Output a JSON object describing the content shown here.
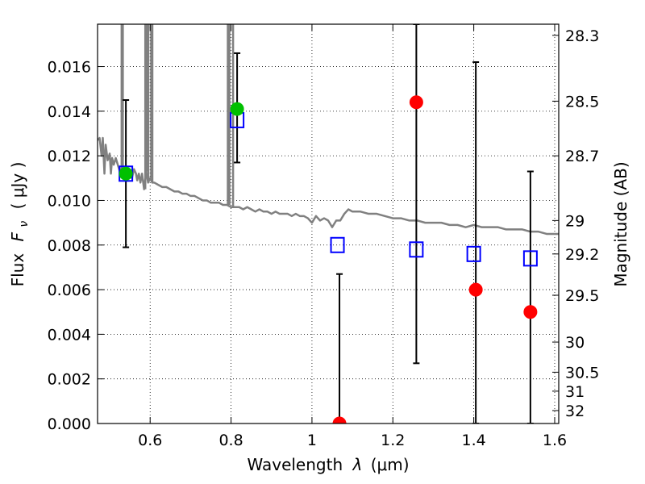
{
  "chart_data": {
    "type": "scatter",
    "xlabel_text": "Wavelength",
    "xlabel_symbol": "λ",
    "xlabel_unit": "(μm)",
    "ylabel_left_text": "Flux",
    "ylabel_left_symbol": "F",
    "ylabel_left_subscript": "ν",
    "ylabel_left_unit": "( μJy )",
    "ylabel_right": "Magnitude (AB)",
    "xlim": [
      0.47,
      1.61
    ],
    "ylim": [
      0.0,
      0.0179
    ],
    "grid": true,
    "x_ticks": [
      0.6,
      0.8,
      1.0,
      1.2,
      1.4,
      1.6
    ],
    "x_tick_labels": [
      "0.6",
      "0.8",
      "1",
      "1.2",
      "1.4",
      "1.6"
    ],
    "y_ticks": [
      0.0,
      0.002,
      0.004,
      0.006,
      0.008,
      0.01,
      0.012,
      0.014,
      0.016
    ],
    "y_tick_labels": [
      "0.000",
      "0.002",
      "0.004",
      "0.006",
      "0.008",
      "0.010",
      "0.012",
      "0.014",
      "0.016"
    ],
    "right_ticks": [
      {
        "flux": 0.0174,
        "label": "28.3"
      },
      {
        "flux": 0.01445,
        "label": "28.5"
      },
      {
        "flux": 0.012,
        "label": "28.7"
      },
      {
        "flux": 0.0091,
        "label": "29"
      },
      {
        "flux": 0.0076,
        "label": "29.2"
      },
      {
        "flux": 0.00575,
        "label": "29.5"
      },
      {
        "flux": 0.00365,
        "label": "30"
      },
      {
        "flux": 0.0023,
        "label": "30.5"
      },
      {
        "flux": 0.00145,
        "label": "31"
      },
      {
        "flux": 0.00058,
        "label": "32"
      }
    ],
    "model_spectrum": {
      "color": "#808080",
      "x": [
        0.47,
        0.475,
        0.48,
        0.483,
        0.487,
        0.49,
        0.495,
        0.5,
        0.503,
        0.506,
        0.51,
        0.515,
        0.52,
        0.525,
        0.53,
        0.535,
        0.54,
        0.545,
        0.55,
        0.555,
        0.56,
        0.565,
        0.568,
        0.572,
        0.576,
        0.58,
        0.585,
        0.59,
        0.595,
        0.6,
        0.605,
        0.61,
        0.62,
        0.63,
        0.64,
        0.65,
        0.66,
        0.67,
        0.68,
        0.69,
        0.7,
        0.71,
        0.72,
        0.73,
        0.74,
        0.75,
        0.76,
        0.77,
        0.78,
        0.79,
        0.8,
        0.81,
        0.82,
        0.83,
        0.84,
        0.85,
        0.86,
        0.87,
        0.88,
        0.89,
        0.9,
        0.91,
        0.92,
        0.93,
        0.94,
        0.95,
        0.96,
        0.97,
        0.98,
        0.99,
        1.0,
        1.01,
        1.02,
        1.03,
        1.04,
        1.05,
        1.06,
        1.07,
        1.08,
        1.09,
        1.1,
        1.12,
        1.14,
        1.16,
        1.18,
        1.2,
        1.22,
        1.24,
        1.26,
        1.28,
        1.3,
        1.32,
        1.34,
        1.36,
        1.38,
        1.4,
        1.42,
        1.44,
        1.46,
        1.48,
        1.5,
        1.52,
        1.54,
        1.56,
        1.58,
        1.6,
        1.61
      ],
      "y": [
        0.0127,
        0.0128,
        0.012,
        0.0128,
        0.0112,
        0.0125,
        0.0118,
        0.0121,
        0.0112,
        0.0119,
        0.0116,
        0.0119,
        0.0116,
        0.0113,
        0.0115,
        0.0112,
        0.0114,
        0.0113,
        0.0111,
        0.011,
        0.0114,
        0.0112,
        0.0109,
        0.0112,
        0.0108,
        0.0112,
        0.0105,
        0.0113,
        0.0108,
        0.011,
        0.0108,
        0.0108,
        0.0107,
        0.0106,
        0.0106,
        0.0105,
        0.0104,
        0.0104,
        0.0103,
        0.0103,
        0.0102,
        0.0102,
        0.0101,
        0.01,
        0.01,
        0.0099,
        0.0099,
        0.0099,
        0.0098,
        0.0098,
        0.0097,
        0.0097,
        0.0097,
        0.0096,
        0.0097,
        0.0096,
        0.0095,
        0.0096,
        0.0095,
        0.0095,
        0.0094,
        0.0095,
        0.0094,
        0.0094,
        0.0094,
        0.0093,
        0.0094,
        0.0093,
        0.0093,
        0.0092,
        0.009,
        0.0093,
        0.0091,
        0.0092,
        0.0091,
        0.0088,
        0.0091,
        0.0091,
        0.0094,
        0.0096,
        0.0095,
        0.0095,
        0.0094,
        0.0094,
        0.0093,
        0.0092,
        0.0092,
        0.0091,
        0.0091,
        0.009,
        0.009,
        0.009,
        0.0089,
        0.0089,
        0.0088,
        0.0089,
        0.0088,
        0.0088,
        0.0088,
        0.0087,
        0.0087,
        0.0087,
        0.0086,
        0.0086,
        0.0085,
        0.0085,
        0.0085
      ],
      "emission_lines": [
        {
          "x": 0.5295,
          "peak": 0.0179
        },
        {
          "x": 0.5325,
          "peak": 0.0179
        },
        {
          "x": 0.588,
          "peak": 0.0179
        },
        {
          "x": 0.5915,
          "peak": 0.0179
        },
        {
          "x": 0.5955,
          "peak": 0.0179
        },
        {
          "x": 0.6025,
          "peak": 0.0179
        },
        {
          "x": 0.6055,
          "peak": 0.0179
        },
        {
          "x": 0.792,
          "peak": 0.0179
        },
        {
          "x": 0.796,
          "peak": 0.0179
        },
        {
          "x": 0.805,
          "peak": 0.0179
        }
      ]
    },
    "series": [
      {
        "marker": "circle",
        "color": "#00c000",
        "points": [
          {
            "x": 0.54,
            "y": 0.0112,
            "yerr_low": 0.0079,
            "yerr_high": 0.0145
          },
          {
            "x": 0.815,
            "y": 0.0141,
            "yerr_low": 0.0117,
            "yerr_high": 0.0166
          }
        ]
      },
      {
        "marker": "circle",
        "color": "#ff0000",
        "points": [
          {
            "x": 1.068,
            "y": 0.0,
            "yerr_low": 0.0,
            "yerr_high": 0.0067
          },
          {
            "x": 1.258,
            "y": 0.0144,
            "yerr_low": 0.0027,
            "yerr_high": 0.0179
          },
          {
            "x": 1.405,
            "y": 0.006,
            "yerr_low": 0.0,
            "yerr_high": 0.0162
          },
          {
            "x": 1.54,
            "y": 0.005,
            "yerr_low": 0.0,
            "yerr_high": 0.0113
          }
        ]
      },
      {
        "marker": "open-square",
        "color": "#0000ff",
        "points": [
          {
            "x": 0.54,
            "y": 0.0112
          },
          {
            "x": 0.815,
            "y": 0.0136
          },
          {
            "x": 1.063,
            "y": 0.008
          },
          {
            "x": 1.258,
            "y": 0.0078
          },
          {
            "x": 1.4,
            "y": 0.0076
          },
          {
            "x": 1.54,
            "y": 0.0074
          }
        ]
      }
    ]
  }
}
